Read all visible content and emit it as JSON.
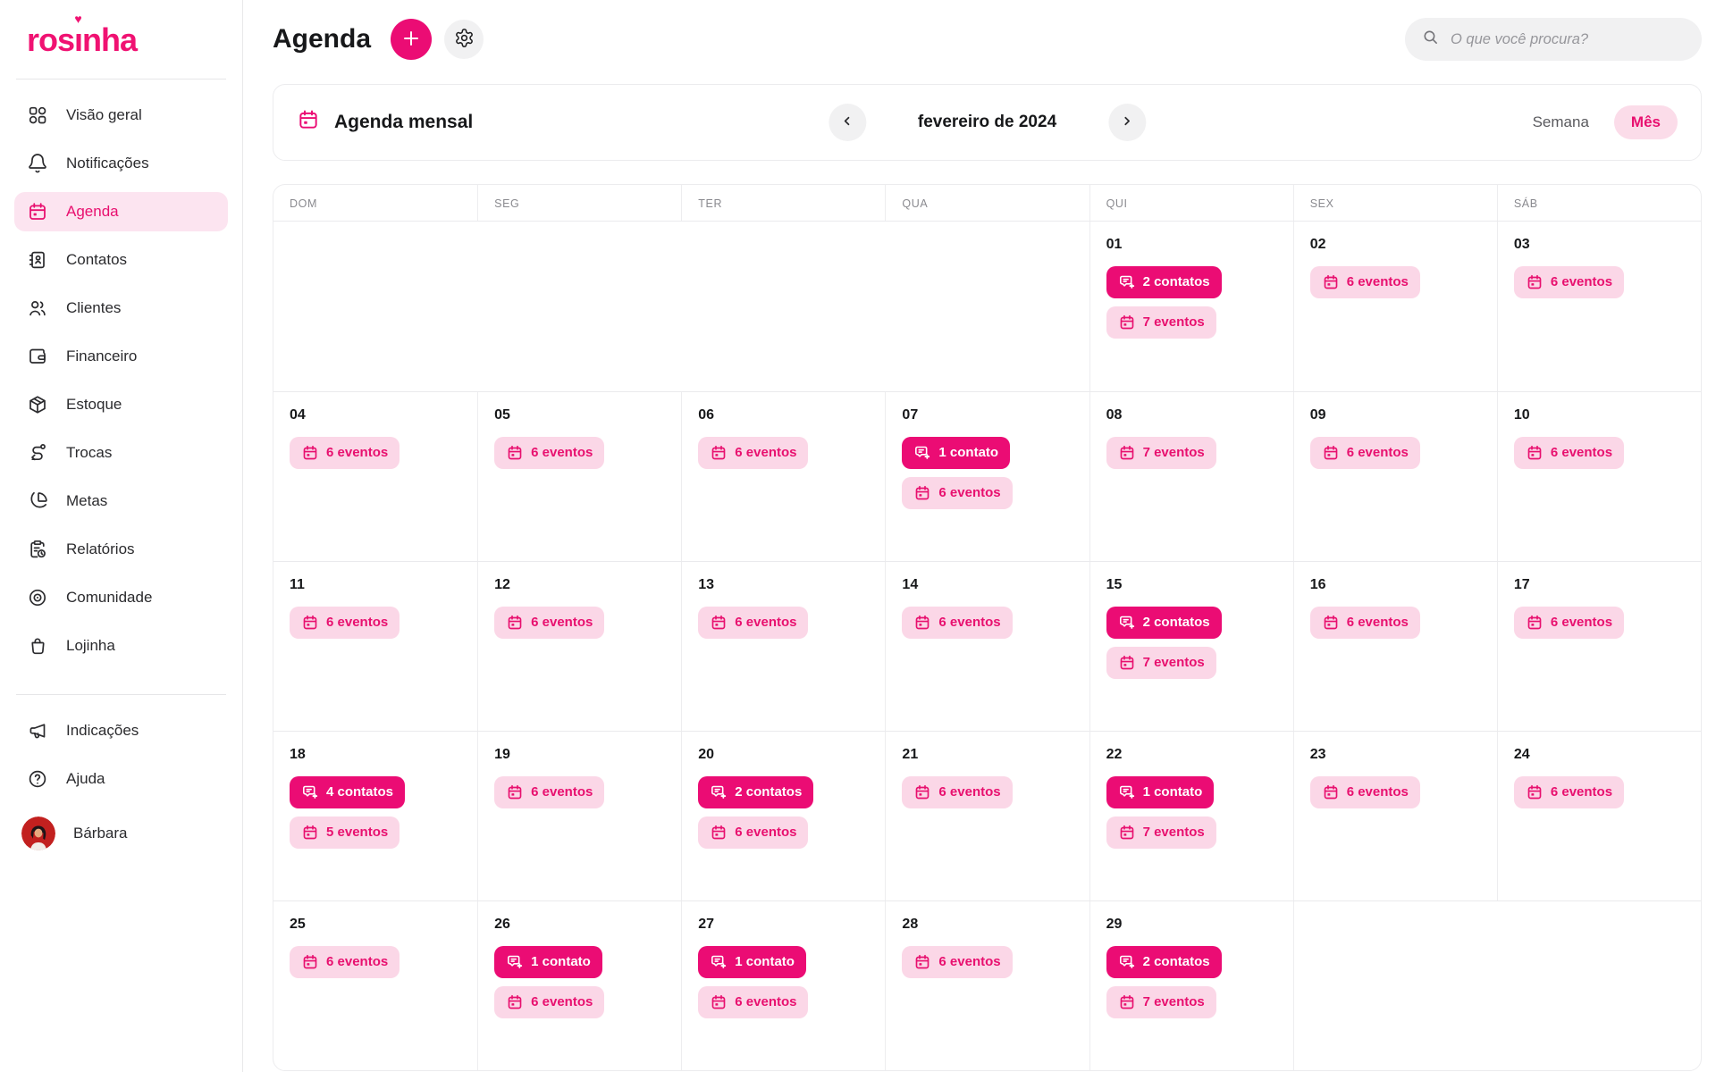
{
  "brand": {
    "name": "rosinha",
    "accent": "#EB0C74",
    "accent_light": "#FBD7E7",
    "accent_soft": "#FCE4F0",
    "accent_text": "#E8106F"
  },
  "header": {
    "title": "Agenda",
    "search_placeholder": "O que você procura?"
  },
  "sidebar": {
    "items": [
      {
        "key": "visao-geral",
        "icon": "grid",
        "label": "Visão geral",
        "active": false
      },
      {
        "key": "notificacoes",
        "icon": "bell",
        "label": "Notificações",
        "active": false
      },
      {
        "key": "agenda",
        "icon": "calendar",
        "label": "Agenda",
        "active": true
      },
      {
        "key": "contatos",
        "icon": "address-book",
        "label": "Contatos",
        "active": false
      },
      {
        "key": "clientes",
        "icon": "users",
        "label": "Clientes",
        "active": false
      },
      {
        "key": "financeiro",
        "icon": "wallet",
        "label": "Financeiro",
        "active": false
      },
      {
        "key": "estoque",
        "icon": "package",
        "label": "Estoque",
        "active": false
      },
      {
        "key": "trocas",
        "icon": "shuffle",
        "label": "Trocas",
        "active": false
      },
      {
        "key": "metas",
        "icon": "pie",
        "label": "Metas",
        "active": false
      },
      {
        "key": "relatorios",
        "icon": "report",
        "label": "Relatórios",
        "active": false
      },
      {
        "key": "comunidade",
        "icon": "community",
        "label": "Comunidade",
        "active": false
      },
      {
        "key": "lojinha",
        "icon": "bag",
        "label": "Lojinha",
        "active": false
      }
    ],
    "footer_items": [
      {
        "key": "indicacoes",
        "icon": "megaphone",
        "label": "Indicações",
        "active": false
      },
      {
        "key": "ajuda",
        "icon": "help",
        "label": "Ajuda",
        "active": false
      }
    ],
    "user": {
      "name": "Bárbara"
    }
  },
  "toolbar": {
    "view_title": "Agenda mensal",
    "month_label": "fevereiro de 2024",
    "week_option": "Semana",
    "month_option": "Mês"
  },
  "calendar": {
    "weekday_headers": [
      "DOM",
      "SEG",
      "TER",
      "QUA",
      "QUI",
      "SEX",
      "SÁB"
    ],
    "weeks": [
      [
        null,
        null,
        null,
        null,
        {
          "day": "01",
          "badges": [
            {
              "type": "contact",
              "label": "2 contatos"
            },
            {
              "type": "event",
              "label": "7 eventos"
            }
          ]
        },
        {
          "day": "02",
          "badges": [
            {
              "type": "event",
              "label": "6 eventos"
            }
          ]
        },
        {
          "day": "03",
          "badges": [
            {
              "type": "event",
              "label": "6 eventos"
            }
          ]
        }
      ],
      [
        {
          "day": "04",
          "badges": [
            {
              "type": "event",
              "label": "6 eventos"
            }
          ]
        },
        {
          "day": "05",
          "badges": [
            {
              "type": "event",
              "label": "6 eventos"
            }
          ]
        },
        {
          "day": "06",
          "badges": [
            {
              "type": "event",
              "label": "6 eventos"
            }
          ]
        },
        {
          "day": "07",
          "badges": [
            {
              "type": "contact",
              "label": "1 contato"
            },
            {
              "type": "event",
              "label": "6 eventos"
            }
          ]
        },
        {
          "day": "08",
          "badges": [
            {
              "type": "event",
              "label": "7 eventos"
            }
          ]
        },
        {
          "day": "09",
          "badges": [
            {
              "type": "event",
              "label": "6 eventos"
            }
          ]
        },
        {
          "day": "10",
          "badges": [
            {
              "type": "event",
              "label": "6 eventos"
            }
          ]
        }
      ],
      [
        {
          "day": "11",
          "badges": [
            {
              "type": "event",
              "label": "6 eventos"
            }
          ]
        },
        {
          "day": "12",
          "badges": [
            {
              "type": "event",
              "label": "6 eventos"
            }
          ]
        },
        {
          "day": "13",
          "badges": [
            {
              "type": "event",
              "label": "6 eventos"
            }
          ]
        },
        {
          "day": "14",
          "badges": [
            {
              "type": "event",
              "label": "6 eventos"
            }
          ]
        },
        {
          "day": "15",
          "badges": [
            {
              "type": "contact",
              "label": "2 contatos"
            },
            {
              "type": "event",
              "label": "7 eventos"
            }
          ]
        },
        {
          "day": "16",
          "badges": [
            {
              "type": "event",
              "label": "6 eventos"
            }
          ]
        },
        {
          "day": "17",
          "badges": [
            {
              "type": "event",
              "label": "6 eventos"
            }
          ]
        }
      ],
      [
        {
          "day": "18",
          "badges": [
            {
              "type": "contact",
              "label": "4 contatos"
            },
            {
              "type": "event",
              "label": "5 eventos"
            }
          ]
        },
        {
          "day": "19",
          "badges": [
            {
              "type": "event",
              "label": "6 eventos"
            }
          ]
        },
        {
          "day": "20",
          "badges": [
            {
              "type": "contact",
              "label": "2 contatos"
            },
            {
              "type": "event",
              "label": "6 eventos"
            }
          ]
        },
        {
          "day": "21",
          "badges": [
            {
              "type": "event",
              "label": "6 eventos"
            }
          ]
        },
        {
          "day": "22",
          "badges": [
            {
              "type": "contact",
              "label": "1 contato"
            },
            {
              "type": "event",
              "label": "7 eventos"
            }
          ]
        },
        {
          "day": "23",
          "badges": [
            {
              "type": "event",
              "label": "6 eventos"
            }
          ]
        },
        {
          "day": "24",
          "badges": [
            {
              "type": "event",
              "label": "6 eventos"
            }
          ]
        }
      ],
      [
        {
          "day": "25",
          "badges": [
            {
              "type": "event",
              "label": "6 eventos"
            }
          ]
        },
        {
          "day": "26",
          "badges": [
            {
              "type": "contact",
              "label": "1 contato"
            },
            {
              "type": "event",
              "label": "6 eventos"
            }
          ]
        },
        {
          "day": "27",
          "badges": [
            {
              "type": "contact",
              "label": "1 contato"
            },
            {
              "type": "event",
              "label": "6 eventos"
            }
          ]
        },
        {
          "day": "28",
          "badges": [
            {
              "type": "event",
              "label": "6 eventos"
            }
          ]
        },
        {
          "day": "29",
          "badges": [
            {
              "type": "contact",
              "label": "2 contatos"
            },
            {
              "type": "event",
              "label": "7 eventos"
            }
          ]
        },
        null,
        null
      ]
    ]
  }
}
